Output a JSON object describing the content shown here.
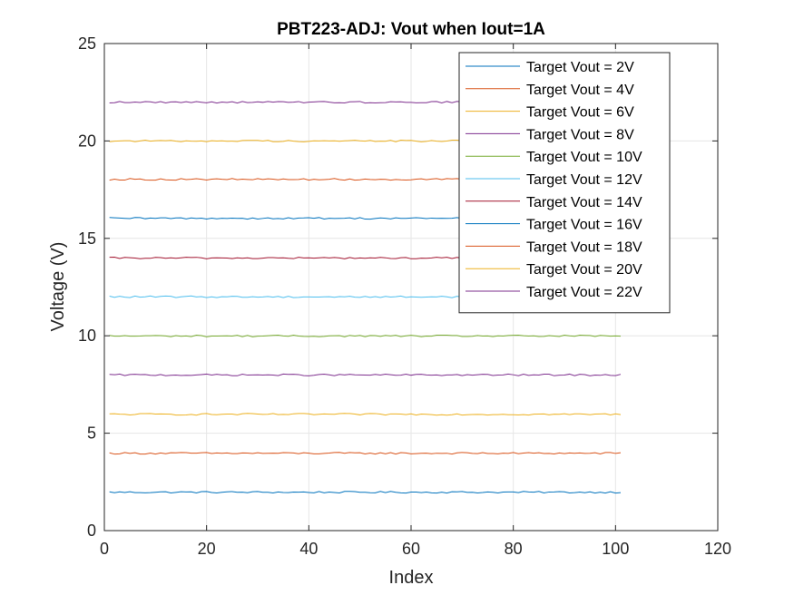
{
  "chart_data": {
    "type": "line",
    "title": "PBT223-ADJ: Vout when Iout=1A",
    "xlabel": "Index",
    "ylabel": "Voltage (V)",
    "xlim": [
      0,
      120
    ],
    "ylim": [
      0,
      25
    ],
    "xticks": [
      0,
      20,
      40,
      60,
      80,
      100,
      120
    ],
    "yticks": [
      0,
      5,
      10,
      15,
      20,
      25
    ],
    "grid": true,
    "legend_position": "top-right",
    "x_start": 1,
    "x_end": 101,
    "series": [
      {
        "name": "Target Vout = 2V",
        "level": 1.97,
        "color": "#0072BD"
      },
      {
        "name": "Target Vout = 4V",
        "level": 3.97,
        "color": "#D95319"
      },
      {
        "name": "Target Vout = 6V",
        "level": 5.97,
        "color": "#EDB120"
      },
      {
        "name": "Target Vout = 8V",
        "level": 7.99,
        "color": "#7E2F8E"
      },
      {
        "name": "Target Vout = 10V",
        "level": 9.99,
        "color": "#77AC30"
      },
      {
        "name": "Target Vout = 12V",
        "level": 12.0,
        "color": "#4DBEEE"
      },
      {
        "name": "Target Vout = 14V",
        "level": 13.99,
        "color": "#A2142F"
      },
      {
        "name": "Target Vout = 16V",
        "level": 16.03,
        "color": "#0072BD"
      },
      {
        "name": "Target Vout = 18V",
        "level": 18.03,
        "color": "#D95319"
      },
      {
        "name": "Target Vout = 20V",
        "level": 20.0,
        "color": "#EDB120"
      },
      {
        "name": "Target Vout = 22V",
        "level": 21.99,
        "color": "#7E2F8E"
      }
    ]
  }
}
